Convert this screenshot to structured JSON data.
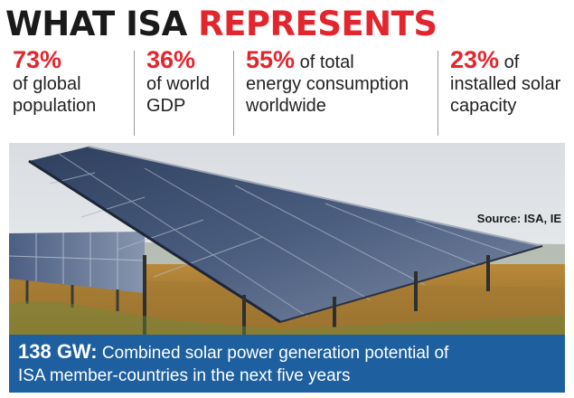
{
  "headline": {
    "part1": "WHAT ISA ",
    "part2": "REPRESENTS"
  },
  "stats": [
    {
      "pct": "73%",
      "line1_rest": "",
      "line2": "of global",
      "line3": "population"
    },
    {
      "pct": "36%",
      "line1_rest": "",
      "line2": "of world",
      "line3": "GDP"
    },
    {
      "pct": "55%",
      "line1_rest": " of total",
      "line2": "energy consumption",
      "line3": "worldwide"
    },
    {
      "pct": "23%",
      "line1_rest": " of",
      "line2": "installed solar",
      "line3": "capacity"
    }
  ],
  "source": "Source: ISA, IE",
  "banner": {
    "value": "138 GW:",
    "text_line1": " Combined solar power generation potential of",
    "text_line2": "ISA member-countries in the next five years"
  },
  "colors": {
    "accent_red": "#e3262d",
    "banner_blue": "#1e5fa0"
  }
}
